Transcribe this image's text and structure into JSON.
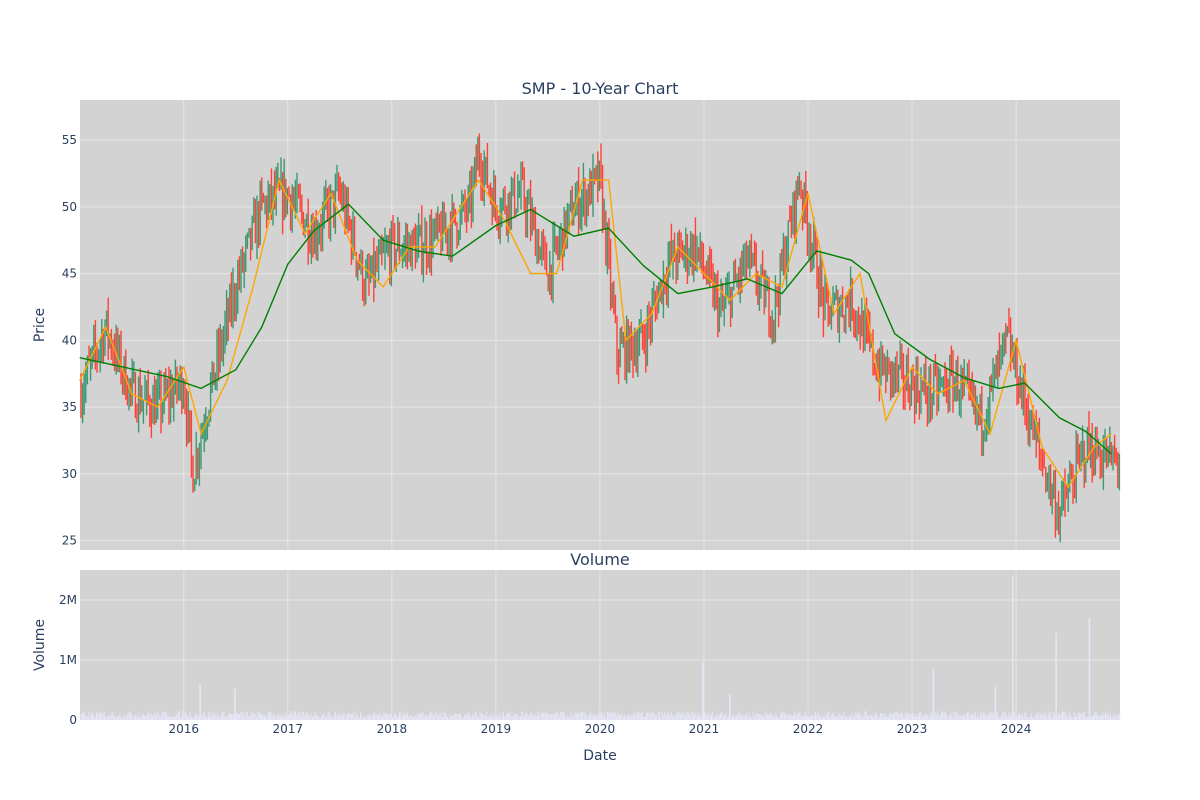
{
  "chart_data": {
    "type": "candlestick",
    "title": "SMP - 10-Year Chart",
    "subplot_title": "Volume",
    "price_panel": {
      "ylabel": "Price",
      "ylim": [
        24.3,
        58.0
      ],
      "yticks": [
        25,
        30,
        35,
        40,
        45,
        50,
        55
      ],
      "background": "#d3d3d3",
      "increasing_color": "#3d9970",
      "decreasing_color": "#ff4136",
      "series": [
        {
          "type": "candlestick_close_sampled",
          "x": [
            "2015-01",
            "2015-04",
            "2015-07",
            "2015-10",
            "2016-01",
            "2016-02",
            "2016-04",
            "2016-07",
            "2016-10",
            "2017-01",
            "2017-04",
            "2017-07",
            "2017-10",
            "2018-01",
            "2018-04",
            "2018-07",
            "2018-10",
            "2018-11",
            "2019-01",
            "2019-04",
            "2019-07",
            "2019-10",
            "2020-01",
            "2020-03",
            "2020-06",
            "2020-09",
            "2020-12",
            "2021-03",
            "2021-06",
            "2021-09",
            "2021-12",
            "2022-03",
            "2022-06",
            "2022-09",
            "2022-12",
            "2023-03",
            "2023-06",
            "2023-09",
            "2023-12",
            "2024-03",
            "2024-06",
            "2024-09",
            "2024-12"
          ],
          "values": [
            36,
            41,
            36,
            35,
            37,
            30,
            36,
            44,
            50,
            51,
            48,
            51,
            44,
            47,
            47,
            48,
            50,
            54,
            50,
            51,
            45,
            50,
            52,
            39,
            40,
            46,
            47,
            42,
            46,
            42,
            52,
            42,
            43,
            38,
            37,
            36,
            37,
            34,
            40,
            33,
            27,
            32,
            31
          ]
        },
        {
          "name": "",
          "color": "#ffa500",
          "type": "line",
          "x": [
            "2015-01",
            "2015-04",
            "2015-07",
            "2015-10",
            "2016-01",
            "2016-03",
            "2016-06",
            "2016-09",
            "2016-12",
            "2017-03",
            "2017-06",
            "2017-09",
            "2017-12",
            "2018-03",
            "2018-06",
            "2018-09",
            "2018-11",
            "2019-02",
            "2019-05",
            "2019-08",
            "2019-11",
            "2020-02",
            "2020-04",
            "2020-07",
            "2020-10",
            "2021-01",
            "2021-04",
            "2021-07",
            "2021-10",
            "2022-01",
            "2022-04",
            "2022-07",
            "2022-10",
            "2023-01",
            "2023-04",
            "2023-07",
            "2023-10",
            "2024-01",
            "2024-04",
            "2024-07",
            "2024-10",
            "2024-12"
          ],
          "values": [
            37,
            41,
            36,
            35,
            38,
            33,
            37,
            44,
            52,
            48,
            51,
            46,
            44,
            47,
            47,
            50,
            52,
            49,
            45,
            45,
            52,
            52,
            40,
            42,
            47,
            45,
            43,
            45,
            44,
            51,
            42,
            45,
            34,
            38,
            36,
            37,
            33,
            40,
            32,
            29,
            32,
            33
          ]
        },
        {
          "name": "",
          "color": "#008000",
          "type": "line",
          "x": [
            "2015-01",
            "2015-06",
            "2015-11",
            "2016-03",
            "2016-07",
            "2016-10",
            "2017-01",
            "2017-04",
            "2017-08",
            "2017-12",
            "2018-04",
            "2018-08",
            "2019-01",
            "2019-05",
            "2019-10",
            "2020-02",
            "2020-06",
            "2020-10",
            "2021-02",
            "2021-06",
            "2021-10",
            "2022-02",
            "2022-06",
            "2022-08",
            "2022-11",
            "2023-03",
            "2023-07",
            "2023-11",
            "2024-02",
            "2024-06",
            "2024-09",
            "2024-12"
          ],
          "values": [
            38.7,
            38,
            37.3,
            36.4,
            37.8,
            41,
            45.7,
            48.2,
            50.2,
            47.5,
            46.7,
            46.3,
            48.6,
            49.8,
            47.8,
            48.4,
            45.6,
            43.5,
            44,
            44.6,
            43.5,
            46.7,
            46,
            45,
            40.5,
            38.6,
            37.2,
            36.4,
            36.8,
            34.2,
            33.2,
            31.5
          ]
        }
      ]
    },
    "volume_panel": {
      "ylabel": "Volume",
      "ylim": [
        0,
        2500000
      ],
      "yticks": [
        0,
        1000000,
        2000000
      ],
      "ytick_labels": [
        "0",
        "1M",
        "2M"
      ],
      "background": "#d3d3d3",
      "bar_color": "#e6e6fa",
      "xlabel": "Date",
      "base_level": 120000,
      "spikes": [
        {
          "x": "2016-02-28",
          "value": 600000
        },
        {
          "x": "2016-06-28",
          "value": 520000
        },
        {
          "x": "2020-12-28",
          "value": 950000
        },
        {
          "x": "2021-04-01",
          "value": 430000
        },
        {
          "x": "2023-03-15",
          "value": 860000
        },
        {
          "x": "2023-10-20",
          "value": 550000
        },
        {
          "x": "2023-12-20",
          "value": 2400000
        },
        {
          "x": "2024-05-20",
          "value": 1450000
        },
        {
          "x": "2024-09-15",
          "value": 1700000
        }
      ]
    },
    "xaxis": {
      "tick_labels": [
        "2016",
        "2017",
        "2018",
        "2019",
        "2020",
        "2021",
        "2022",
        "2023",
        "2024"
      ],
      "range": [
        "2015-01-02",
        "2024-12-31"
      ]
    }
  }
}
